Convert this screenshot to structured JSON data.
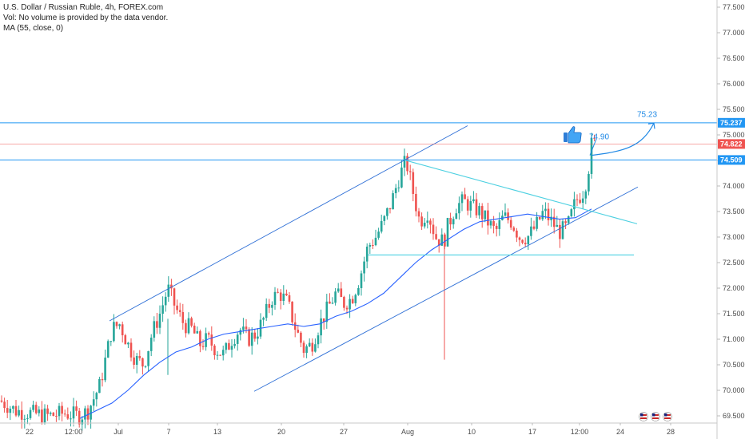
{
  "legend": {
    "symbol": "U.S. Dollar / Russian Ruble, 4h, FOREX.com",
    "volume_note": "Vol: No volume is provided by the data vendor.",
    "ma_label": "MA (55, close, 0)"
  },
  "colors": {
    "up": "#26a69a",
    "down": "#ef5350",
    "ma": "#2962ff",
    "channel": "#2e6fd6",
    "triangle": "#4dd0e1",
    "level": "#2196f3",
    "current": "#ef5350"
  },
  "chart_data": {
    "type": "candlestick",
    "title": "",
    "x_ticks": [
      "22",
      "12:00",
      "Jul",
      "7",
      "13",
      "20",
      "27",
      "Aug",
      "10",
      "17",
      "12:00",
      "24",
      "28"
    ],
    "y_ticks": [
      "69.500",
      "70.000",
      "70.500",
      "71.000",
      "71.500",
      "72.000",
      "72.500",
      "73.000",
      "73.500",
      "74.000",
      "74.500",
      "75.000",
      "75.500",
      "76.000",
      "76.500",
      "77.000",
      "77.500"
    ],
    "ylim": [
      69.35,
      77.6
    ],
    "price_tags": [
      {
        "label": "75.237",
        "value": 75.237,
        "color": "#2196f3"
      },
      {
        "label": "74.822",
        "value": 74.822,
        "color": "#ef5350"
      },
      {
        "label": "74.509",
        "value": 74.509,
        "color": "#2196f3"
      }
    ],
    "annotations": [
      {
        "text": "74.90",
        "value": 74.9
      },
      {
        "text": "75.23",
        "value": 75.23
      }
    ],
    "horizontal_levels": [
      75.237,
      74.822,
      74.509
    ],
    "support_level": 72.65,
    "channel_upper": {
      "start": [
        137,
        71.36
      ],
      "end": [
        585,
        75.18
      ]
    },
    "channel_lower": {
      "start": [
        318,
        69.98
      ],
      "end": [
        798,
        73.98
      ]
    },
    "triangle_upper": {
      "start": [
        508,
        74.5
      ],
      "end": [
        797,
        73.26
      ]
    },
    "close_path": [
      [
        0,
        69.8
      ],
      [
        20,
        69.6
      ],
      [
        40,
        69.55
      ],
      [
        60,
        69.5
      ],
      [
        80,
        69.55
      ],
      [
        100,
        69.5
      ],
      [
        110,
        69.6
      ],
      [
        125,
        70.1
      ],
      [
        140,
        71.2
      ],
      [
        150,
        71.3
      ],
      [
        160,
        70.9
      ],
      [
        170,
        70.6
      ],
      [
        180,
        70.5
      ],
      [
        190,
        71.1
      ],
      [
        200,
        71.5
      ],
      [
        210,
        72.0
      ],
      [
        220,
        71.6
      ],
      [
        230,
        71.3
      ],
      [
        240,
        71.2
      ],
      [
        250,
        70.9
      ],
      [
        260,
        71.0
      ],
      [
        270,
        70.8
      ],
      [
        280,
        70.7
      ],
      [
        290,
        71.0
      ],
      [
        300,
        71.2
      ],
      [
        310,
        71.0
      ],
      [
        320,
        71.1
      ],
      [
        330,
        71.4
      ],
      [
        340,
        71.8
      ],
      [
        350,
        71.9
      ],
      [
        360,
        71.7
      ],
      [
        370,
        71.2
      ],
      [
        380,
        70.8
      ],
      [
        390,
        70.9
      ],
      [
        400,
        71.3
      ],
      [
        410,
        71.6
      ],
      [
        420,
        71.9
      ],
      [
        430,
        71.7
      ],
      [
        440,
        71.8
      ],
      [
        450,
        72.2
      ],
      [
        460,
        72.8
      ],
      [
        470,
        73.0
      ],
      [
        480,
        73.3
      ],
      [
        490,
        73.7
      ],
      [
        500,
        74.2
      ],
      [
        508,
        74.5
      ],
      [
        515,
        74.0
      ],
      [
        525,
        73.3
      ],
      [
        535,
        73.5
      ],
      [
        545,
        73.0
      ],
      [
        555,
        72.9
      ],
      [
        560,
        73.2
      ],
      [
        570,
        73.6
      ],
      [
        580,
        73.7
      ],
      [
        590,
        73.6
      ],
      [
        600,
        73.5
      ],
      [
        610,
        73.3
      ],
      [
        620,
        73.1
      ],
      [
        630,
        73.4
      ],
      [
        640,
        73.3
      ],
      [
        650,
        73.0
      ],
      [
        660,
        73.0
      ],
      [
        670,
        73.2
      ],
      [
        680,
        73.5
      ],
      [
        690,
        73.3
      ],
      [
        700,
        73.1
      ],
      [
        710,
        73.2
      ],
      [
        720,
        73.7
      ],
      [
        730,
        73.9
      ],
      [
        735,
        74.2
      ],
      [
        740,
        74.8
      ],
      [
        745,
        74.85
      ]
    ],
    "ma_path": [
      [
        100,
        69.45
      ],
      [
        120,
        69.6
      ],
      [
        140,
        69.75
      ],
      [
        160,
        70.0
      ],
      [
        180,
        70.3
      ],
      [
        200,
        70.55
      ],
      [
        220,
        70.75
      ],
      [
        240,
        70.85
      ],
      [
        260,
        71.0
      ],
      [
        280,
        71.1
      ],
      [
        300,
        71.15
      ],
      [
        320,
        71.2
      ],
      [
        340,
        71.25
      ],
      [
        360,
        71.3
      ],
      [
        380,
        71.25
      ],
      [
        400,
        71.3
      ],
      [
        420,
        71.45
      ],
      [
        440,
        71.55
      ],
      [
        460,
        71.7
      ],
      [
        480,
        71.9
      ],
      [
        500,
        72.2
      ],
      [
        520,
        72.5
      ],
      [
        540,
        72.75
      ],
      [
        560,
        72.95
      ],
      [
        580,
        73.15
      ],
      [
        600,
        73.3
      ],
      [
        620,
        73.35
      ],
      [
        640,
        73.4
      ],
      [
        660,
        73.45
      ],
      [
        680,
        73.4
      ],
      [
        700,
        73.35
      ],
      [
        720,
        73.38
      ],
      [
        740,
        73.55
      ]
    ],
    "projection": {
      "from": [
        740,
        74.6
      ],
      "to": [
        818,
        75.23
      ]
    }
  }
}
